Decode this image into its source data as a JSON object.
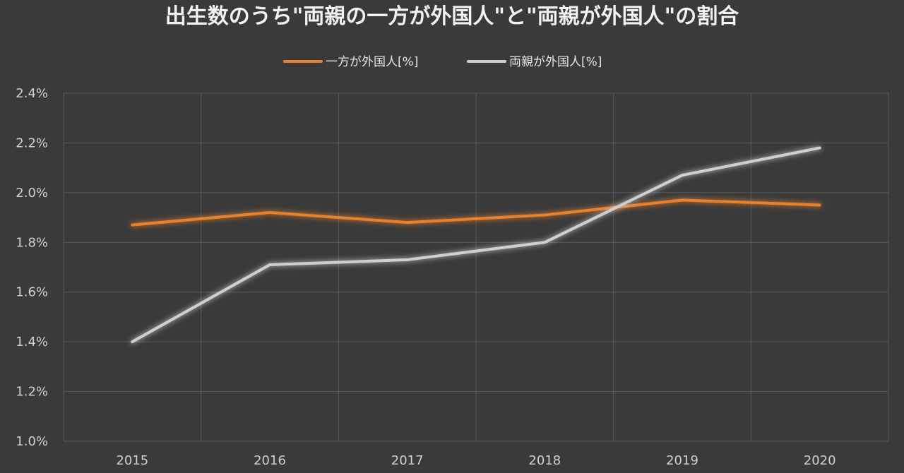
{
  "chart_data": {
    "type": "line",
    "title": "出生数のうち\"両親の一方が外国人\"と\"両親が外国人\"の割合",
    "xlabel": "",
    "ylabel": "",
    "categories": [
      "2015",
      "2016",
      "2017",
      "2018",
      "2019",
      "2020"
    ],
    "ylim": [
      1.0,
      2.4
    ],
    "yticks": [
      1.0,
      1.2,
      1.4,
      1.6,
      1.8,
      2.0,
      2.2,
      2.4
    ],
    "ytick_labels": [
      "1.0%",
      "1.2%",
      "1.4%",
      "1.6%",
      "1.8%",
      "2.0%",
      "2.2%",
      "2.4%"
    ],
    "grid": true,
    "legend_position": "top-center",
    "series": [
      {
        "name": "一方が外国人[%]",
        "color": "#e8812f",
        "values": [
          1.87,
          1.92,
          1.88,
          1.91,
          1.97,
          1.95
        ]
      },
      {
        "name": "両親が外国人[%]",
        "color": "#cfcfcf",
        "values": [
          1.4,
          1.71,
          1.73,
          1.8,
          2.07,
          2.18
        ]
      }
    ]
  }
}
